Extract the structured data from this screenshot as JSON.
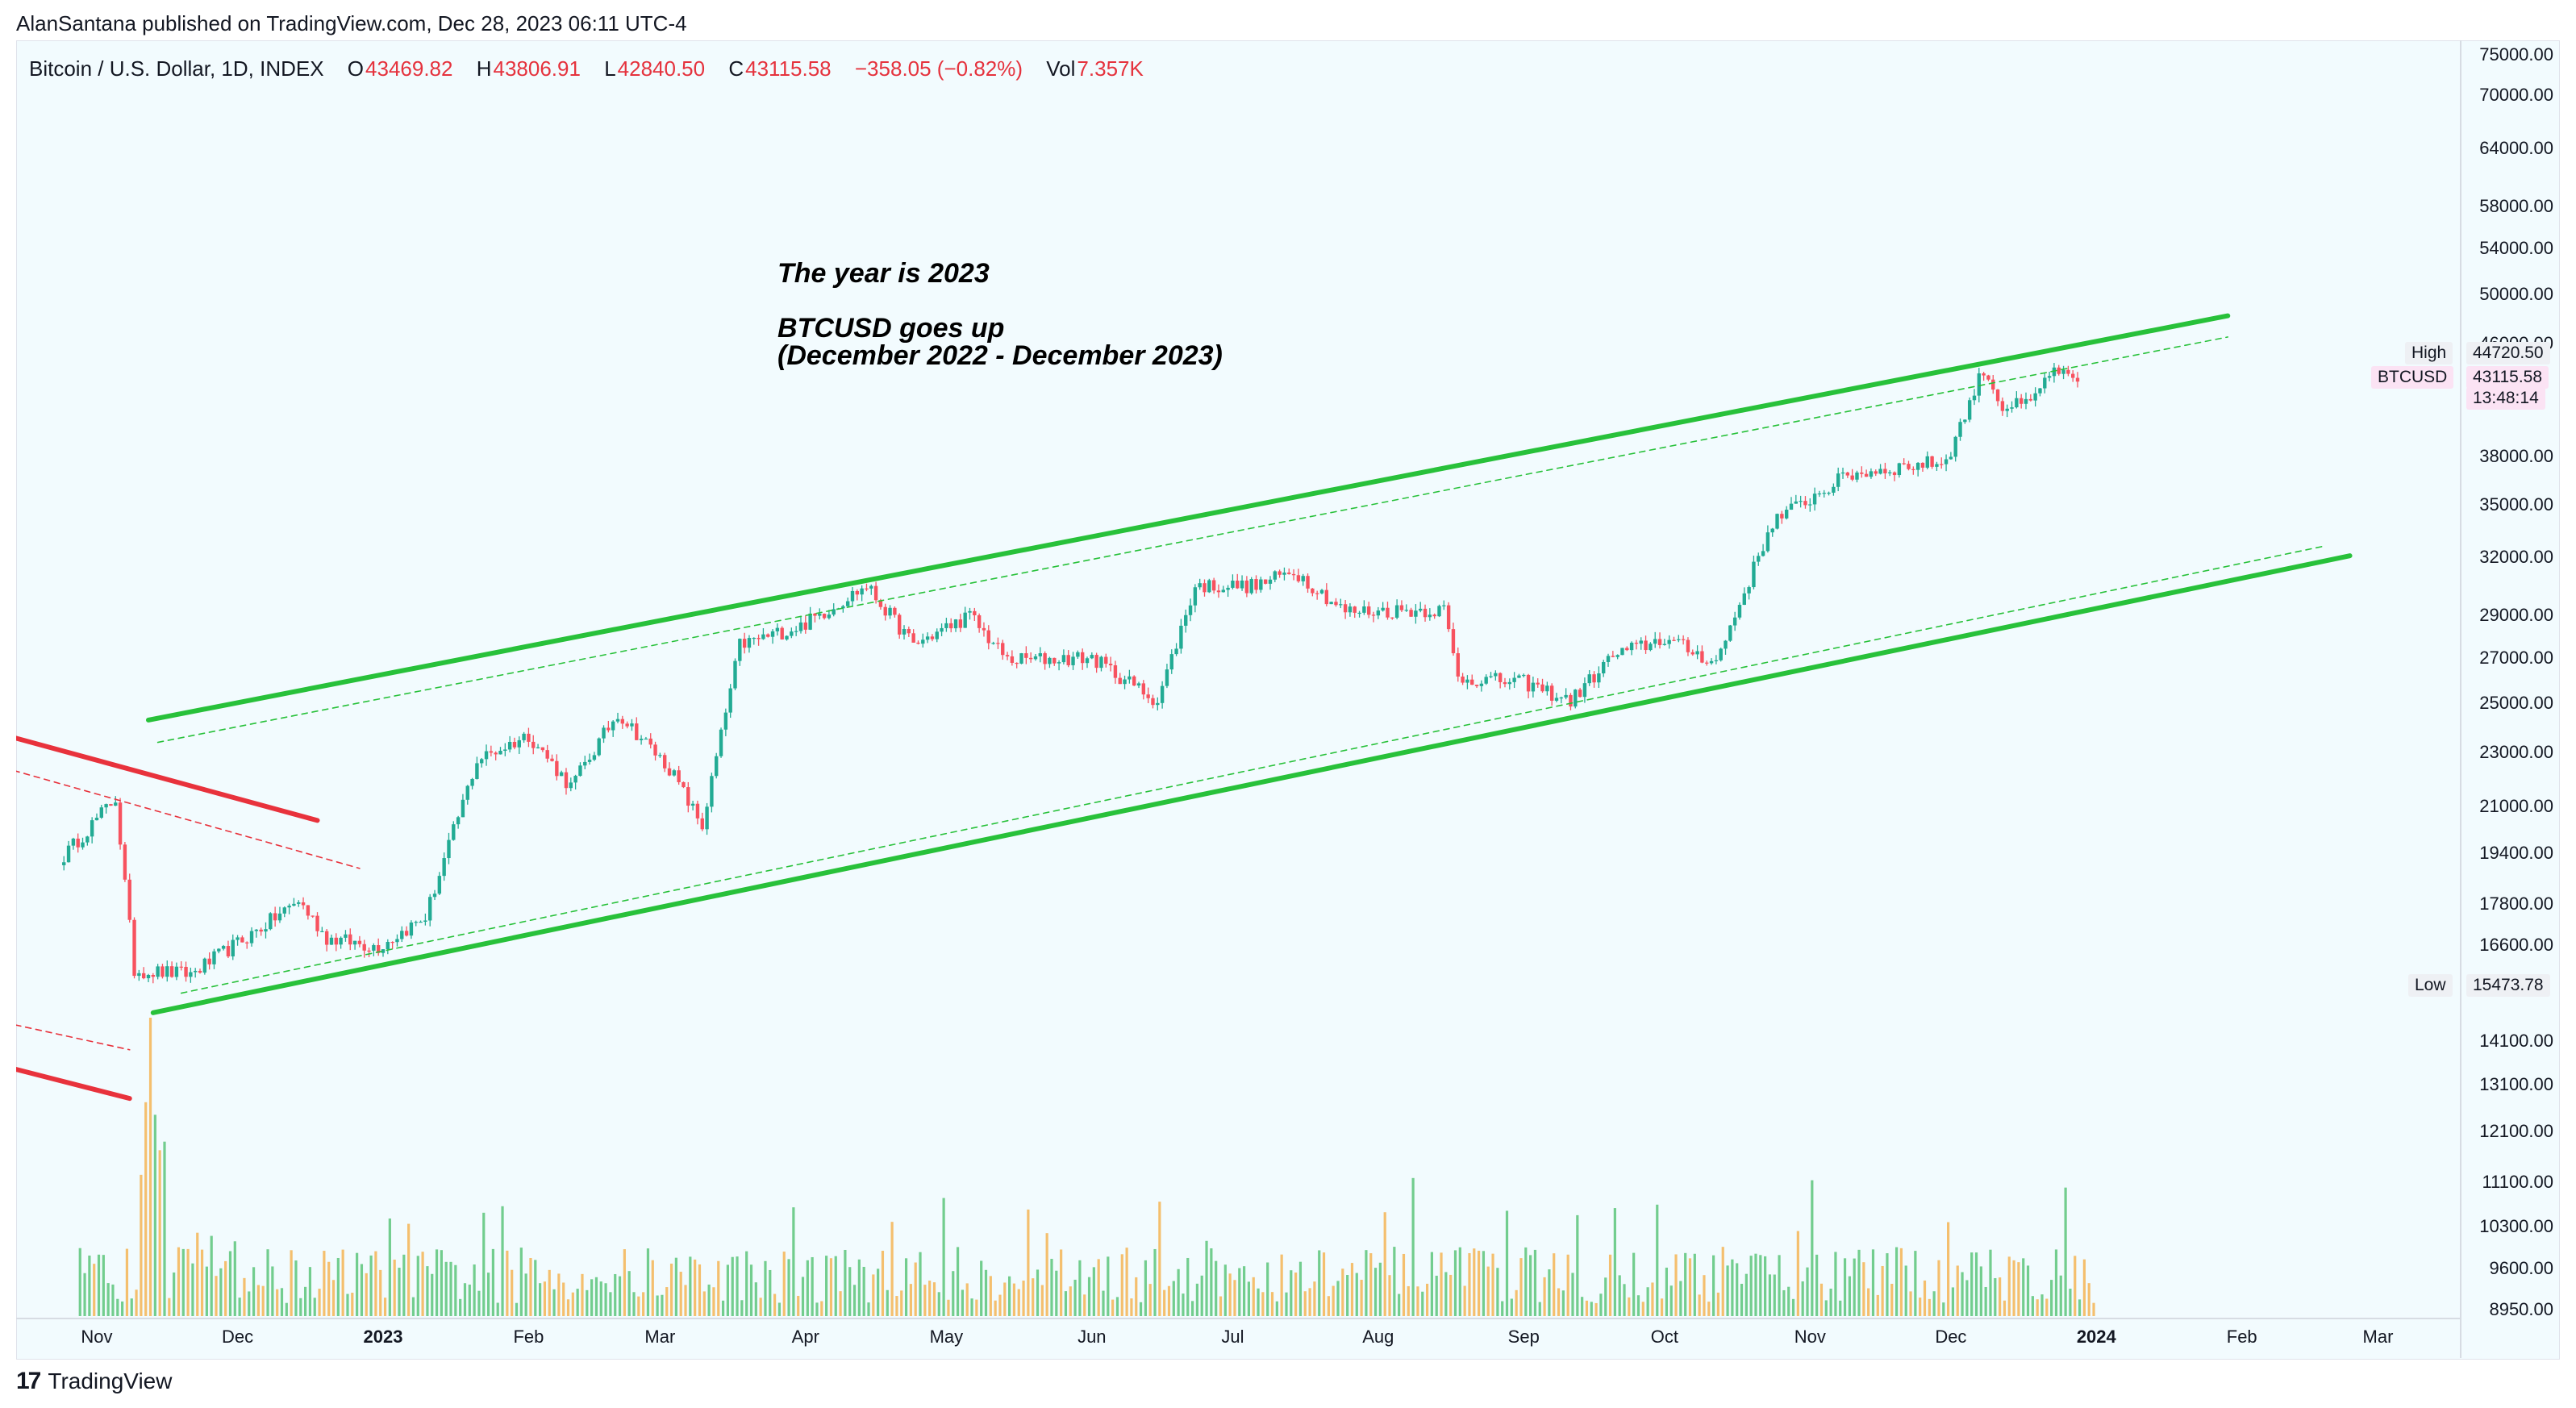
{
  "published": "AlanSantana published on TradingView.com, Dec 28, 2023 06:11 UTC-4",
  "header": {
    "symbol": "Bitcoin / U.S. Dollar, 1D, INDEX",
    "open_label": "O",
    "open": "43469.82",
    "high_label": "H",
    "high": "43806.91",
    "low_label": "L",
    "low": "42840.50",
    "close_label": "C",
    "close": "43115.58",
    "change": "−358.05 (−0.82%)",
    "vol_label": "Vol",
    "vol": "7.357K"
  },
  "annotation": {
    "line1": "The year is 2023",
    "line2": "BTCUSD goes up",
    "line3": "(December 2022 - December 2023)"
  },
  "badges": {
    "high_label": "High",
    "high_value": "44720.50",
    "symbol": "BTCUSD",
    "last_value": "43115.58",
    "countdown": "13:48:14",
    "low_label": "Low",
    "low_value": "15473.78"
  },
  "footer": {
    "logo": "17",
    "brand": "TradingView"
  },
  "colors": {
    "up": "#22ab94",
    "down": "#f7525f",
    "channel": "#28c13a",
    "resistance": "#e8323c",
    "volume_up": "#5cc47a",
    "volume_down": "#f5b455",
    "background": "#f2fbfe"
  },
  "chart_data": {
    "type": "candlestick",
    "title": "Bitcoin / U.S. Dollar, 1D, INDEX",
    "y_scale": "log",
    "ylim": [
      8950,
      75000
    ],
    "y_ticks": [
      "75000.00",
      "70000.00",
      "64000.00",
      "58000.00",
      "54000.00",
      "50000.00",
      "46000.00",
      "38000.00",
      "35000.00",
      "32000.00",
      "29000.00",
      "27000.00",
      "25000.00",
      "23000.00",
      "21000.00",
      "19400.00",
      "17800.00",
      "16600.00",
      "14100.00",
      "13100.00",
      "12100.00",
      "11100.00",
      "10300.00",
      "9600.00",
      "8950.00"
    ],
    "x_ticks": [
      {
        "label": "Nov",
        "bold": false
      },
      {
        "label": "Dec",
        "bold": false
      },
      {
        "label": "2023",
        "bold": true
      },
      {
        "label": "Feb",
        "bold": false
      },
      {
        "label": "Mar",
        "bold": false
      },
      {
        "label": "Apr",
        "bold": false
      },
      {
        "label": "May",
        "bold": false
      },
      {
        "label": "Jun",
        "bold": false
      },
      {
        "label": "Jul",
        "bold": false
      },
      {
        "label": "Aug",
        "bold": false
      },
      {
        "label": "Sep",
        "bold": false
      },
      {
        "label": "Oct",
        "bold": false
      },
      {
        "label": "Nov",
        "bold": false
      },
      {
        "label": "Dec",
        "bold": false
      },
      {
        "label": "2024",
        "bold": true
      },
      {
        "label": "Feb",
        "bold": false
      },
      {
        "label": "Mar",
        "bold": false
      }
    ],
    "price_path": [
      {
        "date": "2022-10-25",
        "price": 19300
      },
      {
        "date": "2022-11-05",
        "price": 21300
      },
      {
        "date": "2022-11-09",
        "price": 15900
      },
      {
        "date": "2022-11-21",
        "price": 15800
      },
      {
        "date": "2022-12-05",
        "price": 17000
      },
      {
        "date": "2022-12-14",
        "price": 17900
      },
      {
        "date": "2022-12-20",
        "price": 16800
      },
      {
        "date": "2022-12-31",
        "price": 16550
      },
      {
        "date": "2023-01-10",
        "price": 17400
      },
      {
        "date": "2023-01-21",
        "price": 22700
      },
      {
        "date": "2023-02-01",
        "price": 23700
      },
      {
        "date": "2023-02-10",
        "price": 21700
      },
      {
        "date": "2023-02-20",
        "price": 24600
      },
      {
        "date": "2023-03-03",
        "price": 22400
      },
      {
        "date": "2023-03-10",
        "price": 20300
      },
      {
        "date": "2023-03-18",
        "price": 27600
      },
      {
        "date": "2023-03-31",
        "price": 28500
      },
      {
        "date": "2023-04-14",
        "price": 30500
      },
      {
        "date": "2023-04-24",
        "price": 27600
      },
      {
        "date": "2023-05-06",
        "price": 29000
      },
      {
        "date": "2023-05-14",
        "price": 26900
      },
      {
        "date": "2023-06-01",
        "price": 27000
      },
      {
        "date": "2023-06-15",
        "price": 25100
      },
      {
        "date": "2023-06-23",
        "price": 30500
      },
      {
        "date": "2023-07-06",
        "price": 30500
      },
      {
        "date": "2023-07-14",
        "price": 31300
      },
      {
        "date": "2023-07-25",
        "price": 29200
      },
      {
        "date": "2023-08-15",
        "price": 29300
      },
      {
        "date": "2023-08-18",
        "price": 26100
      },
      {
        "date": "2023-09-01",
        "price": 25900
      },
      {
        "date": "2023-09-11",
        "price": 25100
      },
      {
        "date": "2023-09-20",
        "price": 27100
      },
      {
        "date": "2023-10-01",
        "price": 27900
      },
      {
        "date": "2023-10-12",
        "price": 26800
      },
      {
        "date": "2023-10-24",
        "price": 34000
      },
      {
        "date": "2023-11-09",
        "price": 36800
      },
      {
        "date": "2023-11-20",
        "price": 37300
      },
      {
        "date": "2023-11-30",
        "price": 37700
      },
      {
        "date": "2023-12-08",
        "price": 44100
      },
      {
        "date": "2023-12-12",
        "price": 41300
      },
      {
        "date": "2023-12-18",
        "price": 41500
      },
      {
        "date": "2023-12-22",
        "price": 43800
      },
      {
        "date": "2023-12-28",
        "price": 43115
      }
    ],
    "trendlines": [
      {
        "style": "solid",
        "color": "green",
        "from": {
          "date": "2022-11-13",
          "price": 14800
        },
        "to": {
          "date": "2024-02-24",
          "price": 32100
        }
      },
      {
        "style": "solid",
        "color": "green",
        "from": {
          "date": "2022-11-12",
          "price": 24300
        },
        "to": {
          "date": "2024-01-29",
          "price": 48200
        }
      },
      {
        "style": "dashed",
        "color": "green",
        "from": {
          "date": "2022-11-19",
          "price": 15300
        },
        "to": {
          "date": "2024-02-18",
          "price": 32600
        }
      },
      {
        "style": "dashed",
        "color": "green",
        "from": {
          "date": "2022-11-14",
          "price": 23400
        },
        "to": {
          "date": "2024-01-29",
          "price": 46500
        }
      },
      {
        "style": "solid",
        "color": "red",
        "from": {
          "date": "2022-09-25",
          "price": 24600
        },
        "to": {
          "date": "2022-12-18",
          "price": 20500
        }
      },
      {
        "style": "dashed",
        "color": "red",
        "from": {
          "date": "2022-09-25",
          "price": 23300
        },
        "to": {
          "date": "2022-12-27",
          "price": 18900
        }
      },
      {
        "style": "solid",
        "color": "red",
        "from": {
          "date": "2022-09-25",
          "price": 14000
        },
        "to": {
          "date": "2022-11-08",
          "price": 12800
        }
      },
      {
        "style": "dashed",
        "color": "red",
        "from": {
          "date": "2022-09-25",
          "price": 15000
        },
        "to": {
          "date": "2022-11-08",
          "price": 13900
        }
      }
    ]
  }
}
